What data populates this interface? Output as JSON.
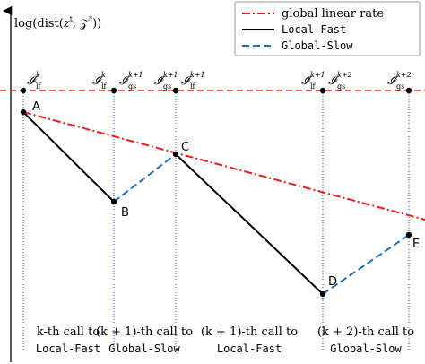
{
  "axis_label": {
    "pre": "log(dist(",
    "var": "z",
    "var_sup": "t",
    "mid": ", 𝒵",
    "mid_sup": "*",
    "post": "))"
  },
  "legend": [
    {
      "label": "global linear rate"
    },
    {
      "label": "Local-Fast"
    },
    {
      "label": "Global-Slow"
    }
  ],
  "markers": [
    {
      "labels": [
        {
          "symbol": "𝓘",
          "sub": "lf",
          "sup": "k"
        }
      ]
    },
    {
      "labels": [
        {
          "symbol": "𝓘̃",
          "sub": "lf",
          "sup": "k"
        },
        {
          "symbol": "𝓘",
          "sub": "gs",
          "sup": "k+1"
        }
      ]
    },
    {
      "labels": [
        {
          "symbol": "𝓘̃",
          "sub": "gs",
          "sup": "k+1"
        },
        {
          "symbol": "𝓘",
          "sub": "lf",
          "sup": "k+1"
        }
      ]
    },
    {
      "labels": [
        {
          "symbol": "𝓘̃",
          "sub": "lf",
          "sup": "k+1"
        },
        {
          "symbol": "𝓘",
          "sub": "gs",
          "sup": "k+2"
        }
      ]
    },
    {
      "labels": [
        {
          "symbol": "𝓘̃",
          "sub": "gs",
          "sup": "k+2"
        }
      ]
    }
  ],
  "points": [
    "A",
    "B",
    "C",
    "D",
    "E"
  ],
  "calls": [
    {
      "line1": "k-th call to",
      "line2": "Local-Fast"
    },
    {
      "line1": "(k + 1)-th call to",
      "line2": "Global-Slow"
    },
    {
      "line1": "(k + 1)-th call to",
      "line2": "Local-Fast"
    },
    {
      "line1": "(k + 2)-th call to",
      "line2": "Global-Slow"
    }
  ]
}
